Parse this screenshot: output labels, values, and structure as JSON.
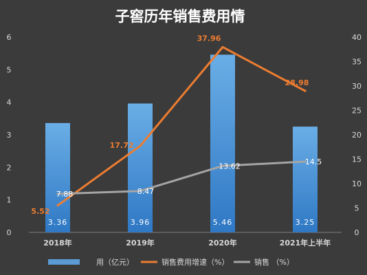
{
  "chart_data": {
    "type": "bar",
    "title": "子窖历年销售费用情",
    "categories": [
      "2018年",
      "2019年",
      "2020年",
      "2021年上半年"
    ],
    "left_axis": {
      "ylim": [
        0,
        6
      ],
      "ticks": [
        "0",
        "1",
        "2",
        "3",
        "4",
        "5",
        "6"
      ]
    },
    "right_axis": {
      "ylim": [
        0,
        40
      ],
      "ticks": [
        "0",
        "5",
        "10",
        "15",
        "20",
        "25",
        "30",
        "35",
        "40"
      ]
    },
    "series": [
      {
        "name": "用（亿元）",
        "type": "bar",
        "axis": "left",
        "values": [
          3.36,
          3.96,
          5.46,
          3.25
        ],
        "labels": [
          "3.36",
          "3.96",
          "5.46",
          "3.25"
        ],
        "color": "#5b9bd5"
      },
      {
        "name": "销售费用增速（%）",
        "type": "line",
        "axis": "right",
        "values": [
          5.52,
          17.72,
          37.96,
          28.98
        ],
        "labels": [
          "5.52",
          "17.72",
          "37.96",
          "28.98"
        ],
        "color": "#ed7d31"
      },
      {
        "name": "销售 （%）",
        "type": "line",
        "axis": "right",
        "values": [
          7.88,
          8.47,
          13.62,
          14.5
        ],
        "labels": [
          "7.88",
          "8.47",
          "13.62",
          "14.5"
        ],
        "color": "#a5a5a5"
      }
    ],
    "grid": false,
    "legend_position": "bottom"
  },
  "colors": {
    "background": "#3b3b3b",
    "axis_text": "#d9d9d9",
    "title": "#ffffff"
  }
}
